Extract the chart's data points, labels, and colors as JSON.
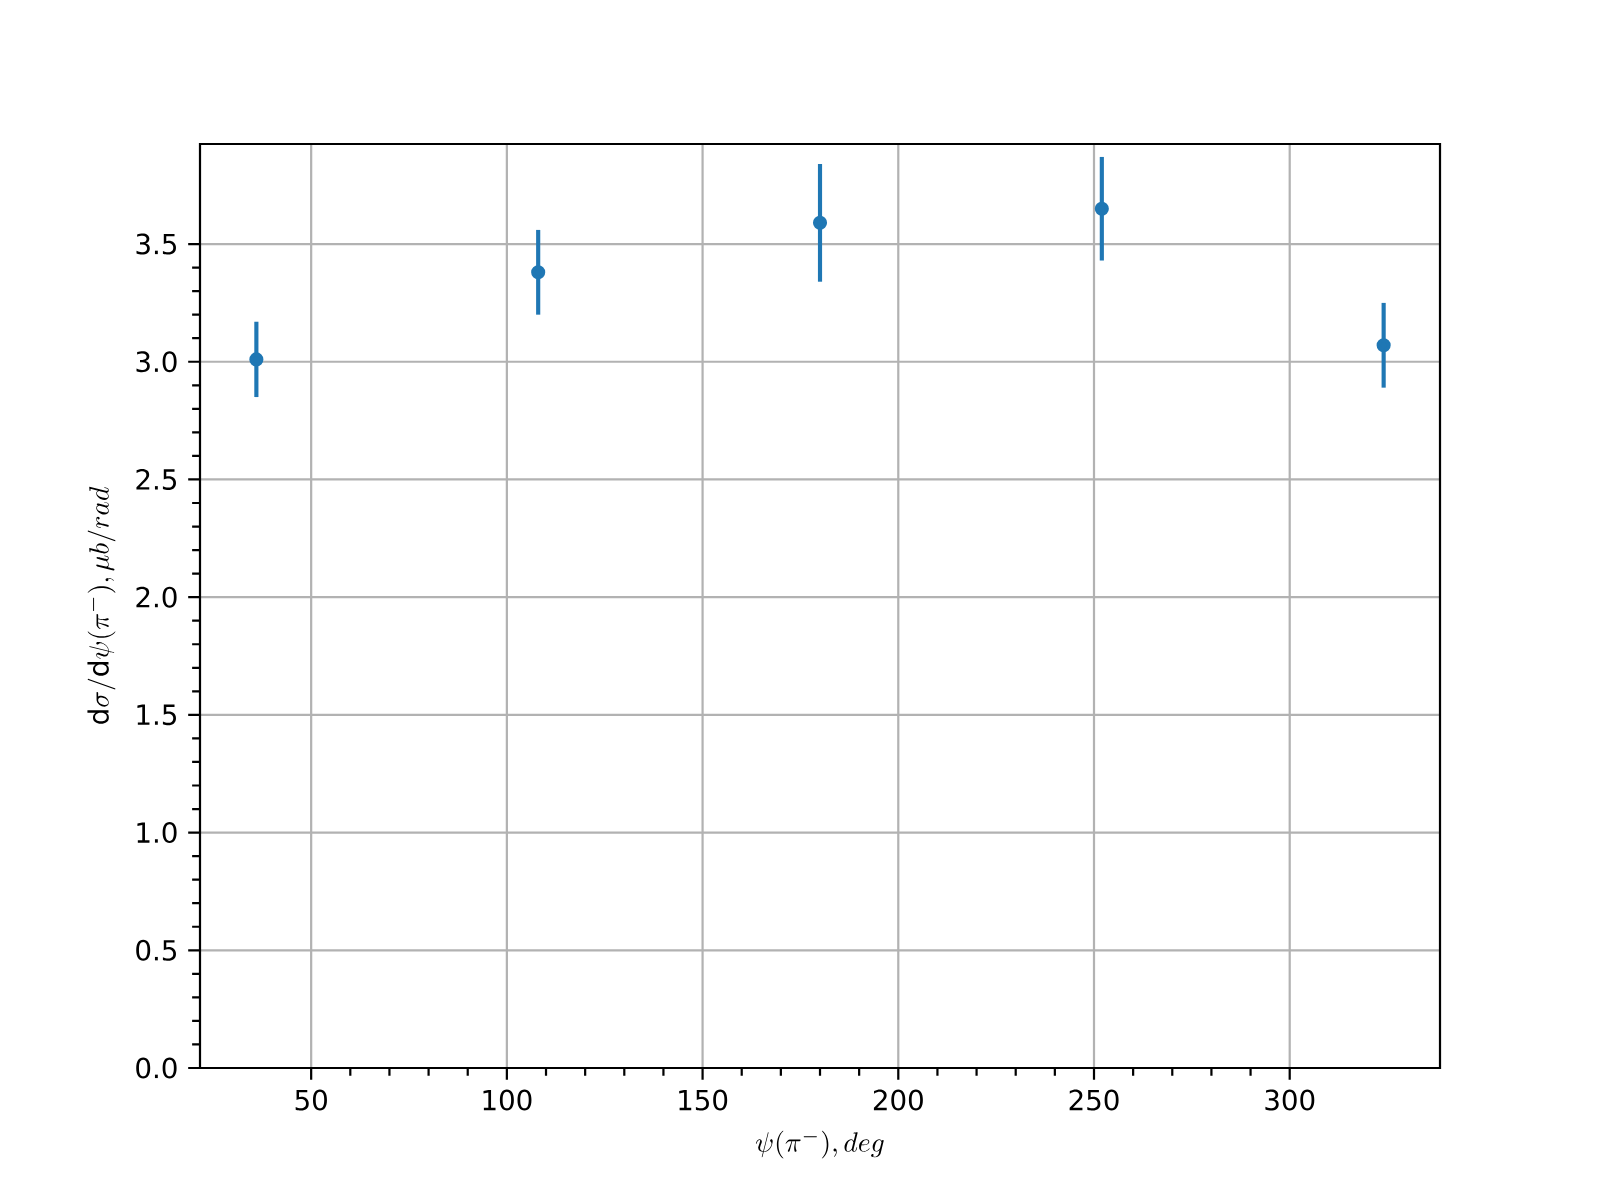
{
  "chart_data": {
    "type": "scatter",
    "xlabel": "\\psi(\\pi^{-}), deg",
    "ylabel": "\\mathrm{d}\\sigma/\\mathrm{d}\\psi(\\pi^{-}), \\mu b/rad",
    "x": [
      36,
      108,
      180,
      252,
      324
    ],
    "values": [
      3.01,
      3.38,
      3.59,
      3.65,
      3.07
    ],
    "errors": [
      0.16,
      0.18,
      0.25,
      0.22,
      0.18
    ],
    "color": "#1f77b4",
    "marker": "circle",
    "xlim": [
      21.6,
      338.4
    ],
    "ylim": [
      0,
      3.925
    ],
    "xticks": [
      50,
      100,
      150,
      200,
      250,
      300
    ],
    "yticks": [
      {
        "value": 0,
        "label": "0.0"
      },
      {
        "value": 0.5,
        "label": "0.5"
      },
      {
        "value": 1,
        "label": "1.0"
      },
      {
        "value": 1.5,
        "label": "1.5"
      },
      {
        "value": 2,
        "label": "2.0"
      },
      {
        "value": 2.5,
        "label": "2.5"
      },
      {
        "value": 3,
        "label": "3.0"
      },
      {
        "value": 3.5,
        "label": "3.5"
      }
    ],
    "grid": true
  }
}
